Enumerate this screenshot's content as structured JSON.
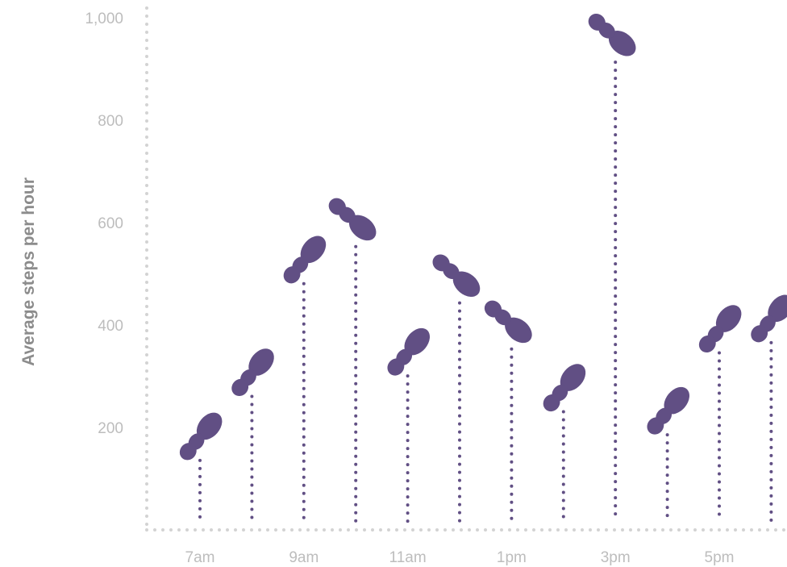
{
  "chart_data": {
    "type": "scatter",
    "title": "",
    "xlabel": "",
    "ylabel": "Average steps per hour",
    "x": [
      "7am",
      "8am",
      "9am",
      "10am",
      "11am",
      "12pm",
      "1pm",
      "2pm",
      "3pm",
      "4pm",
      "5pm",
      "6pm"
    ],
    "x_tick_labels": [
      "7am",
      "9am",
      "11am",
      "1pm",
      "3pm",
      "5pm"
    ],
    "y_ticks": [
      200,
      400,
      600,
      800,
      1000
    ],
    "y_tick_labels": [
      "200",
      "400",
      "600",
      "800",
      "1,000"
    ],
    "ylim": [
      0,
      1000
    ],
    "grid": false,
    "series": [
      {
        "values": [
          175,
          300,
          520,
          550,
          340,
          440,
          350,
          270,
          910,
          225,
          385,
          405
        ]
      }
    ],
    "marker": "footprint",
    "marker_orientation": [
      "up",
      "up",
      "up",
      "down",
      "up",
      "down",
      "down",
      "up",
      "down",
      "up",
      "up",
      "up"
    ],
    "colors": {
      "marker": "#614f84",
      "stem": "#614f84",
      "axis": "#d3d3d3"
    }
  }
}
